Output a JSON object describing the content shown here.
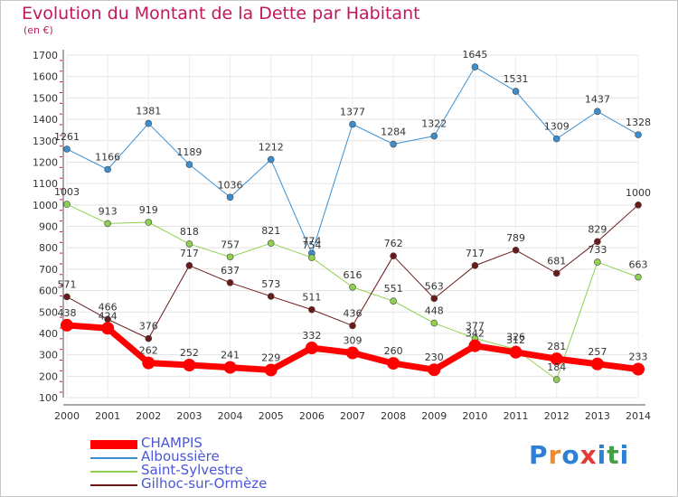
{
  "title": "Evolution du Montant de la Dette par Habitant",
  "unit_label": "(en €)",
  "brand": {
    "text": "Proxiti",
    "letters": [
      "P",
      "r",
      "o",
      "x",
      "i",
      "t",
      "i"
    ],
    "colors": [
      "#2e7fd6",
      "#f28c28",
      "#2e7fd6",
      "#e53935",
      "#2e7fd6",
      "#43a047",
      "#2e7fd6"
    ]
  },
  "chart_data": {
    "type": "line",
    "title": "Evolution du Montant de la Dette par Habitant",
    "ylabel": "(en €)",
    "xlabel": "",
    "ylim": [
      100,
      1700
    ],
    "yticks": [
      100,
      200,
      300,
      400,
      500,
      600,
      700,
      800,
      900,
      1000,
      1100,
      1200,
      1300,
      1400,
      1500,
      1600,
      1700
    ],
    "categories": [
      "2000",
      "2001",
      "2002",
      "2003",
      "2004",
      "2005",
      "2006",
      "2007",
      "2008",
      "2009",
      "2010",
      "2011",
      "2012",
      "2013",
      "2014"
    ],
    "legend_position": "bottom-left",
    "series": [
      {
        "name": "CHAMPIS",
        "color": "#ff0000",
        "values": [
          438,
          424,
          262,
          252,
          241,
          229,
          332,
          309,
          260,
          230,
          342,
          312,
          281,
          257,
          233
        ]
      },
      {
        "name": "Alboussière",
        "color": "#3b8fd1",
        "values": [
          1261,
          1166,
          1381,
          1189,
          1036,
          1212,
          774,
          1377,
          1284,
          1322,
          1645,
          1531,
          1309,
          1437,
          1328
        ]
      },
      {
        "name": "Saint-Sylvestre",
        "color": "#8fd14f",
        "values": [
          1003,
          913,
          919,
          818,
          757,
          821,
          754,
          616,
          551,
          448,
          377,
          326,
          184,
          733,
          663
        ]
      },
      {
        "name": "Gilhoc-sur-Ormèze",
        "color": "#6b1a1a",
        "values": [
          571,
          466,
          376,
          717,
          637,
          573,
          511,
          436,
          762,
          563,
          717,
          789,
          681,
          829,
          1000
        ]
      }
    ]
  }
}
